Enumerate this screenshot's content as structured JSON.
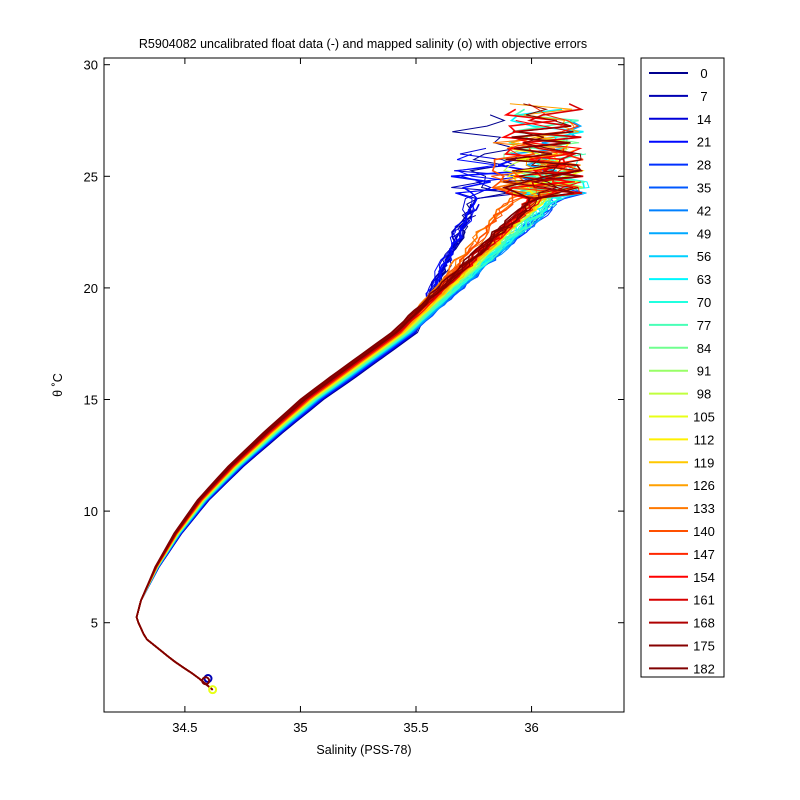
{
  "chart_data": {
    "type": "line",
    "title": "R5904082 uncalibrated float data (-) and mapped salinity (o) with objective errors",
    "xlabel": "Salinity (PSS-78)",
    "ylabel": "θ ˚C",
    "xlim": [
      34.15,
      36.4
    ],
    "ylim": [
      1.0,
      30.3
    ],
    "xticks": [
      34.5,
      35,
      35.5,
      36
    ],
    "yticks": [
      5,
      10,
      15,
      20,
      25,
      30
    ],
    "grid": false,
    "legend_position": "right",
    "series": [
      {
        "name": "0",
        "color": "#00008f"
      },
      {
        "name": "7",
        "color": "#0000b3"
      },
      {
        "name": "14",
        "color": "#0000d9"
      },
      {
        "name": "21",
        "color": "#0008ff"
      },
      {
        "name": "28",
        "color": "#0030ff"
      },
      {
        "name": "35",
        "color": "#0058ff"
      },
      {
        "name": "42",
        "color": "#0080ff"
      },
      {
        "name": "49",
        "color": "#00a8ff"
      },
      {
        "name": "56",
        "color": "#00d0ff"
      },
      {
        "name": "63",
        "color": "#00f8ff"
      },
      {
        "name": "70",
        "color": "#20ffdf"
      },
      {
        "name": "77",
        "color": "#48ffb7"
      },
      {
        "name": "84",
        "color": "#70ff8f"
      },
      {
        "name": "91",
        "color": "#98ff67"
      },
      {
        "name": "98",
        "color": "#c0ff3f"
      },
      {
        "name": "105",
        "color": "#e8ff17"
      },
      {
        "name": "112",
        "color": "#fff000"
      },
      {
        "name": "119",
        "color": "#ffc800"
      },
      {
        "name": "126",
        "color": "#ffa000"
      },
      {
        "name": "133",
        "color": "#ff7800"
      },
      {
        "name": "140",
        "color": "#ff5000"
      },
      {
        "name": "147",
        "color": "#ff2800"
      },
      {
        "name": "154",
        "color": "#ff0000"
      },
      {
        "name": "161",
        "color": "#d70000"
      },
      {
        "name": "168",
        "color": "#af0000"
      },
      {
        "name": "175",
        "color": "#870000"
      },
      {
        "name": "182",
        "color": "#800000"
      }
    ],
    "core_profile": [
      [
        34.62,
        2.0
      ],
      [
        34.55,
        2.6
      ],
      [
        34.45,
        3.3
      ],
      [
        34.33,
        4.3
      ],
      [
        34.29,
        5.2
      ],
      [
        34.31,
        6.0
      ],
      [
        34.38,
        7.5
      ],
      [
        34.47,
        9.0
      ],
      [
        34.58,
        10.5
      ],
      [
        34.72,
        12.0
      ],
      [
        34.88,
        13.5
      ],
      [
        35.05,
        15.0
      ],
      [
        35.25,
        16.5
      ],
      [
        35.45,
        18.0
      ],
      [
        35.6,
        19.5
      ],
      [
        35.75,
        21.0
      ],
      [
        35.9,
        22.5
      ],
      [
        36.05,
        24.0
      ],
      [
        36.2,
        25.5
      ]
    ]
  }
}
